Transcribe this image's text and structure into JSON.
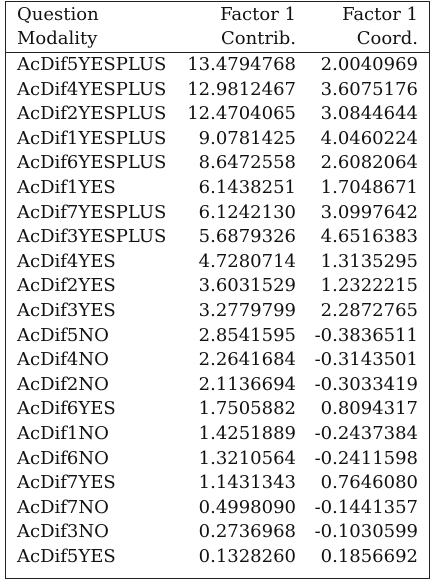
{
  "header": {
    "col1_line1": "Question",
    "col1_line2": "Modality",
    "col2_line1": "Factor 1",
    "col2_line2": "Contrib.",
    "col3_line1": "Factor 1",
    "col3_line2": "Coord."
  },
  "rows": [
    {
      "modality": "AcDif5YESPLUS",
      "contrib": "13.4794768",
      "coord": "2.0040969"
    },
    {
      "modality": "AcDif4YESPLUS",
      "contrib": "12.9812467",
      "coord": "3.6075176"
    },
    {
      "modality": "AcDif2YESPLUS",
      "contrib": "12.4704065",
      "coord": "3.0844644"
    },
    {
      "modality": "AcDif1YESPLUS",
      "contrib": "9.0781425",
      "coord": "4.0460224"
    },
    {
      "modality": "AcDif6YESPLUS",
      "contrib": "8.6472558",
      "coord": "2.6082064"
    },
    {
      "modality": "AcDif1YES",
      "contrib": "6.1438251",
      "coord": "1.7048671"
    },
    {
      "modality": "AcDif7YESPLUS",
      "contrib": "6.1242130",
      "coord": "3.0997642"
    },
    {
      "modality": "AcDif3YESPLUS",
      "contrib": "5.6879326",
      "coord": "4.6516383"
    },
    {
      "modality": "AcDif4YES",
      "contrib": "4.7280714",
      "coord": "1.3135295"
    },
    {
      "modality": "AcDif2YES",
      "contrib": "3.6031529",
      "coord": "1.2322215"
    },
    {
      "modality": "AcDif3YES",
      "contrib": "3.2779799",
      "coord": "2.2872765"
    },
    {
      "modality": "AcDif5NO",
      "contrib": "2.8541595",
      "coord": "-0.3836511"
    },
    {
      "modality": "AcDif4NO",
      "contrib": "2.2641684",
      "coord": "-0.3143501"
    },
    {
      "modality": "AcDif2NO",
      "contrib": "2.1136694",
      "coord": "-0.3033419"
    },
    {
      "modality": "AcDif6YES",
      "contrib": "1.7505882",
      "coord": "0.8094317"
    },
    {
      "modality": "AcDif1NO",
      "contrib": "1.4251889",
      "coord": "-0.2437384"
    },
    {
      "modality": "AcDif6NO",
      "contrib": "1.3210564",
      "coord": "-0.2411598"
    },
    {
      "modality": "AcDif7YES",
      "contrib": "1.1431343",
      "coord": "0.7646080"
    },
    {
      "modality": "AcDif7NO",
      "contrib": "0.4998090",
      "coord": "-0.1441357"
    },
    {
      "modality": "AcDif3NO",
      "contrib": "0.2736968",
      "coord": "-0.1030599"
    },
    {
      "modality": "AcDif5YES",
      "contrib": "0.1328260",
      "coord": "0.1856692"
    }
  ]
}
